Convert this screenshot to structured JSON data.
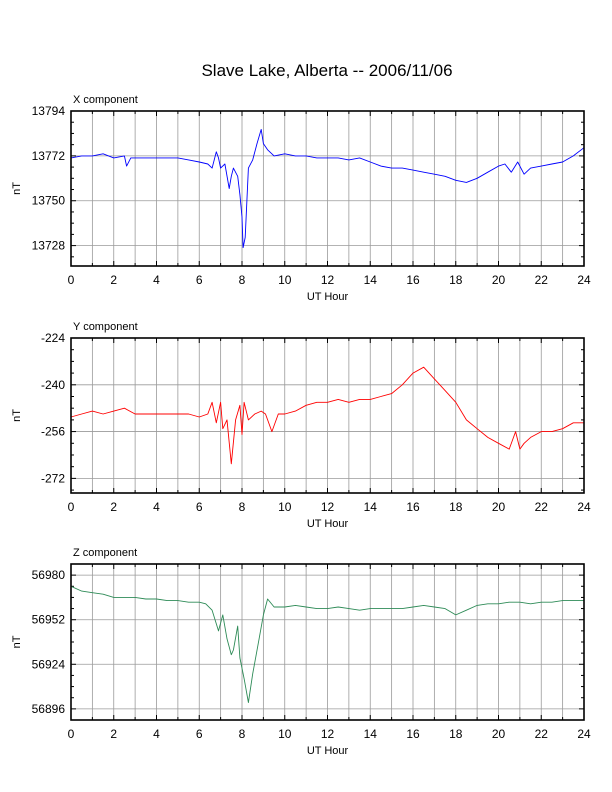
{
  "title": "Slave Lake, Alberta -- 2006/11/06",
  "chart_data": [
    {
      "type": "line",
      "panel_label": "X component",
      "xlabel": "UT Hour",
      "ylabel": "nT",
      "xlim": [
        0,
        24
      ],
      "ylim": [
        13718,
        13794
      ],
      "x_ticks": [
        0,
        2,
        4,
        6,
        8,
        10,
        12,
        14,
        16,
        18,
        20,
        22,
        24
      ],
      "y_ticks": [
        13794,
        13772,
        13750,
        13728
      ],
      "grid": true,
      "color": "#0000ff",
      "x": [
        0,
        0.5,
        1,
        1.5,
        2,
        2.5,
        2.6,
        2.8,
        3,
        3.5,
        4,
        4.5,
        5,
        5.5,
        6,
        6.4,
        6.6,
        6.8,
        6.9,
        7.0,
        7.2,
        7.4,
        7.5,
        7.6,
        7.8,
        7.9,
        8.0,
        8.05,
        8.15,
        8.3,
        8.5,
        8.7,
        8.9,
        9.0,
        9.2,
        9.5,
        10,
        10.5,
        11,
        11.5,
        12,
        12.5,
        13,
        13.5,
        14,
        14.5,
        15,
        15.5,
        16,
        16.5,
        17,
        17.5,
        18,
        18.5,
        19,
        19.5,
        20,
        20.3,
        20.6,
        20.9,
        21.2,
        21.5,
        22,
        22.5,
        23,
        23.5,
        24
      ],
      "y": [
        13771,
        13772,
        13772,
        13773,
        13771,
        13772,
        13767,
        13771,
        13771,
        13771,
        13771,
        13771,
        13771,
        13770,
        13769,
        13768,
        13766,
        13774,
        13771,
        13766,
        13768,
        13756,
        13762,
        13766,
        13762,
        13753,
        13742,
        13727,
        13732,
        13766,
        13770,
        13778,
        13785,
        13778,
        13775,
        13772,
        13773,
        13772,
        13772,
        13771,
        13771,
        13771,
        13770,
        13771,
        13769,
        13767,
        13766,
        13766,
        13765,
        13764,
        13763,
        13762,
        13760,
        13759,
        13761,
        13764,
        13767,
        13768,
        13764,
        13769,
        13763,
        13766,
        13767,
        13768,
        13769,
        13772,
        13776
      ]
    },
    {
      "type": "line",
      "panel_label": "Y component",
      "xlabel": "UT Hour",
      "ylabel": "nT",
      "xlim": [
        0,
        24
      ],
      "ylim": [
        -277,
        -224
      ],
      "x_ticks": [
        0,
        2,
        4,
        6,
        8,
        10,
        12,
        14,
        16,
        18,
        20,
        22,
        24
      ],
      "y_ticks": [
        -224,
        -240,
        -256,
        -272
      ],
      "grid": true,
      "color": "#ff0000",
      "x": [
        0,
        0.5,
        1,
        1.5,
        2,
        2.5,
        3,
        3.5,
        4,
        4.5,
        5,
        5.5,
        6,
        6.4,
        6.6,
        6.8,
        7.0,
        7.1,
        7.3,
        7.5,
        7.7,
        7.9,
        8.0,
        8.1,
        8.3,
        8.6,
        8.9,
        9.1,
        9.4,
        9.7,
        10,
        10.5,
        11,
        11.5,
        12,
        12.5,
        13,
        13.5,
        14,
        14.5,
        15,
        15.5,
        16,
        16.5,
        17,
        17.5,
        18,
        18.5,
        19,
        19.5,
        20,
        20.5,
        20.8,
        21.0,
        21.2,
        21.5,
        22,
        22.5,
        23,
        23.5,
        24
      ],
      "y": [
        -251,
        -250,
        -249,
        -250,
        -249,
        -248,
        -250,
        -250,
        -250,
        -250,
        -250,
        -250,
        -251,
        -250,
        -246,
        -253,
        -246,
        -255,
        -252,
        -267,
        -252,
        -247,
        -257,
        -246,
        -252,
        -250,
        -249,
        -250,
        -256,
        -250,
        -250,
        -249,
        -247,
        -246,
        -246,
        -245,
        -246,
        -245,
        -245,
        -244,
        -243,
        -240,
        -236,
        -234,
        -238,
        -242,
        -246,
        -252,
        -255,
        -258,
        -260,
        -262,
        -256,
        -262,
        -260,
        -258,
        -256,
        -256,
        -255,
        -253,
        -253
      ]
    },
    {
      "type": "line",
      "panel_label": "Z component",
      "xlabel": "UT Hour",
      "ylabel": "nT",
      "xlim": [
        0,
        24
      ],
      "ylim": [
        56889,
        56987
      ],
      "x_ticks": [
        0,
        2,
        4,
        6,
        8,
        10,
        12,
        14,
        16,
        18,
        20,
        22,
        24
      ],
      "y_ticks": [
        56980,
        56952,
        56924,
        56896
      ],
      "grid": true,
      "color": "#2e8b57",
      "x": [
        0,
        0.5,
        1,
        1.5,
        2,
        2.5,
        3,
        3.5,
        4,
        4.5,
        5,
        5.5,
        6,
        6.3,
        6.6,
        6.9,
        7.1,
        7.3,
        7.5,
        7.6,
        7.8,
        7.9,
        8.1,
        8.3,
        8.5,
        8.8,
        9.0,
        9.2,
        9.5,
        10,
        10.5,
        11,
        11.5,
        12,
        12.5,
        13,
        13.5,
        14,
        14.5,
        15,
        15.5,
        16,
        16.5,
        17,
        17.5,
        18,
        18.5,
        19,
        19.5,
        20,
        20.5,
        21,
        21.5,
        22,
        22.5,
        23,
        23.5,
        24
      ],
      "y": [
        56973,
        56970,
        56969,
        56968,
        56966,
        56966,
        56966,
        56965,
        56965,
        56964,
        56964,
        56963,
        56963,
        56962,
        56958,
        56945,
        56955,
        56940,
        56930,
        56933,
        56948,
        56928,
        56915,
        56900,
        56918,
        56940,
        56955,
        56965,
        56960,
        56960,
        56961,
        56960,
        56959,
        56959,
        56960,
        56959,
        56958,
        56959,
        56959,
        56959,
        56959,
        56960,
        56961,
        56960,
        56959,
        56955,
        56958,
        56961,
        56962,
        56962,
        56963,
        56963,
        56962,
        56963,
        56963,
        56964,
        56964,
        56964
      ]
    }
  ]
}
